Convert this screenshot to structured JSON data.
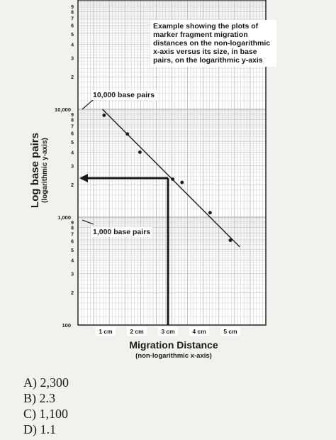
{
  "chart_data": {
    "type": "scatter",
    "x_unit": "cm",
    "y_scale": "log",
    "xlabel": "Migration Distance",
    "xlabel_sub": "(non-logarithmic x-axis)",
    "ylabel": "Log base pairs",
    "ylabel_sub": "(logarithmic y-axis)",
    "xlim": [
      0,
      5.6
    ],
    "ylim": [
      100,
      100000
    ],
    "x_ticks": [
      {
        "value": 1,
        "label": "1 cm"
      },
      {
        "value": 2,
        "label": "2 cm"
      },
      {
        "value": 3,
        "label": "3 cm"
      },
      {
        "value": 4,
        "label": "4 cm"
      },
      {
        "value": 5,
        "label": "5 cm"
      }
    ],
    "y_major_labels": [
      {
        "value": 100,
        "label": "100"
      },
      {
        "value": 1000,
        "label": "1,000"
      },
      {
        "value": 10000,
        "label": "10,000"
      }
    ],
    "y_minor_digits": [
      "2",
      "3",
      "4",
      "5",
      "6",
      "7",
      "8",
      "9"
    ],
    "points": [
      {
        "x": 0.95,
        "y": 8800
      },
      {
        "x": 1.7,
        "y": 5900
      },
      {
        "x": 2.1,
        "y": 4000
      },
      {
        "x": 3.15,
        "y": 2250
      },
      {
        "x": 3.45,
        "y": 2100
      },
      {
        "x": 4.35,
        "y": 1100
      },
      {
        "x": 5.0,
        "y": 610
      }
    ],
    "trendline": [
      {
        "x": 0.9,
        "y": 10000
      },
      {
        "x": 5.3,
        "y": 530
      }
    ],
    "readout": {
      "x": 3.0,
      "y": 2300
    },
    "annotations": {
      "explanation": "Example showing the plots of marker fragment migration distances on the non-logarithmic x-axis versus its size, in base pairs, on the logarithmic y-axis",
      "label_10k": "10,000 base pairs",
      "label_1k": "1,000 base pairs"
    },
    "grid": true
  },
  "options": [
    {
      "letter": "A)",
      "text": "2,300"
    },
    {
      "letter": "B)",
      "text": "2.3"
    },
    {
      "letter": "C)",
      "text": "1,100"
    },
    {
      "letter": "D)",
      "text": "1.1"
    }
  ],
  "colors": {
    "ink": "#1a1a1a",
    "paper": "#ffffff",
    "grid": "#b9b9b9"
  }
}
